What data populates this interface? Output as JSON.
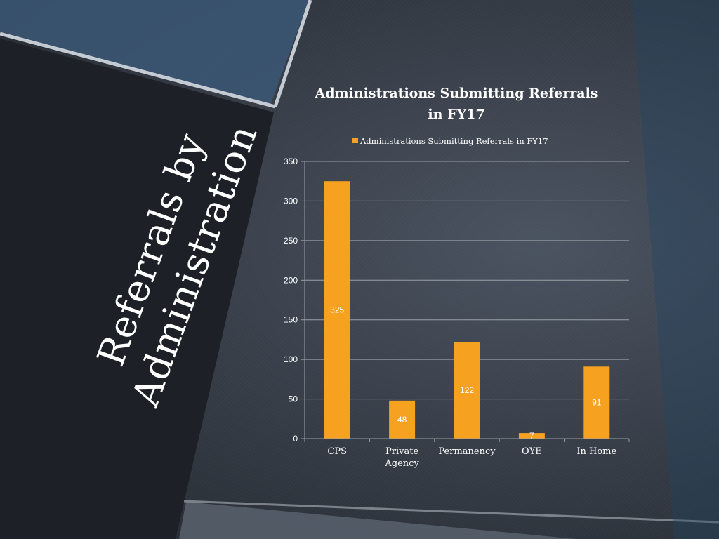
{
  "slide": {
    "title": "Referrals by Administration"
  },
  "colors": {
    "bar": "#f7a121",
    "grid": "#9aa0a6",
    "text": "#ffffff"
  },
  "chart_data": {
    "type": "bar",
    "title": "Administrations Submitting Referrals in FY17",
    "categories": [
      "CPS",
      "Private Agency",
      "Permanency",
      "OYE",
      "In Home"
    ],
    "series": [
      {
        "name": "Administrations Submitting Referrals in FY17",
        "values": [
          325,
          48,
          122,
          7,
          91
        ]
      }
    ],
    "ylim": [
      0,
      350
    ],
    "yticks": [
      0,
      50,
      100,
      150,
      200,
      250,
      300,
      350
    ],
    "grid": true,
    "legend_position": "top",
    "data_labels": true
  }
}
